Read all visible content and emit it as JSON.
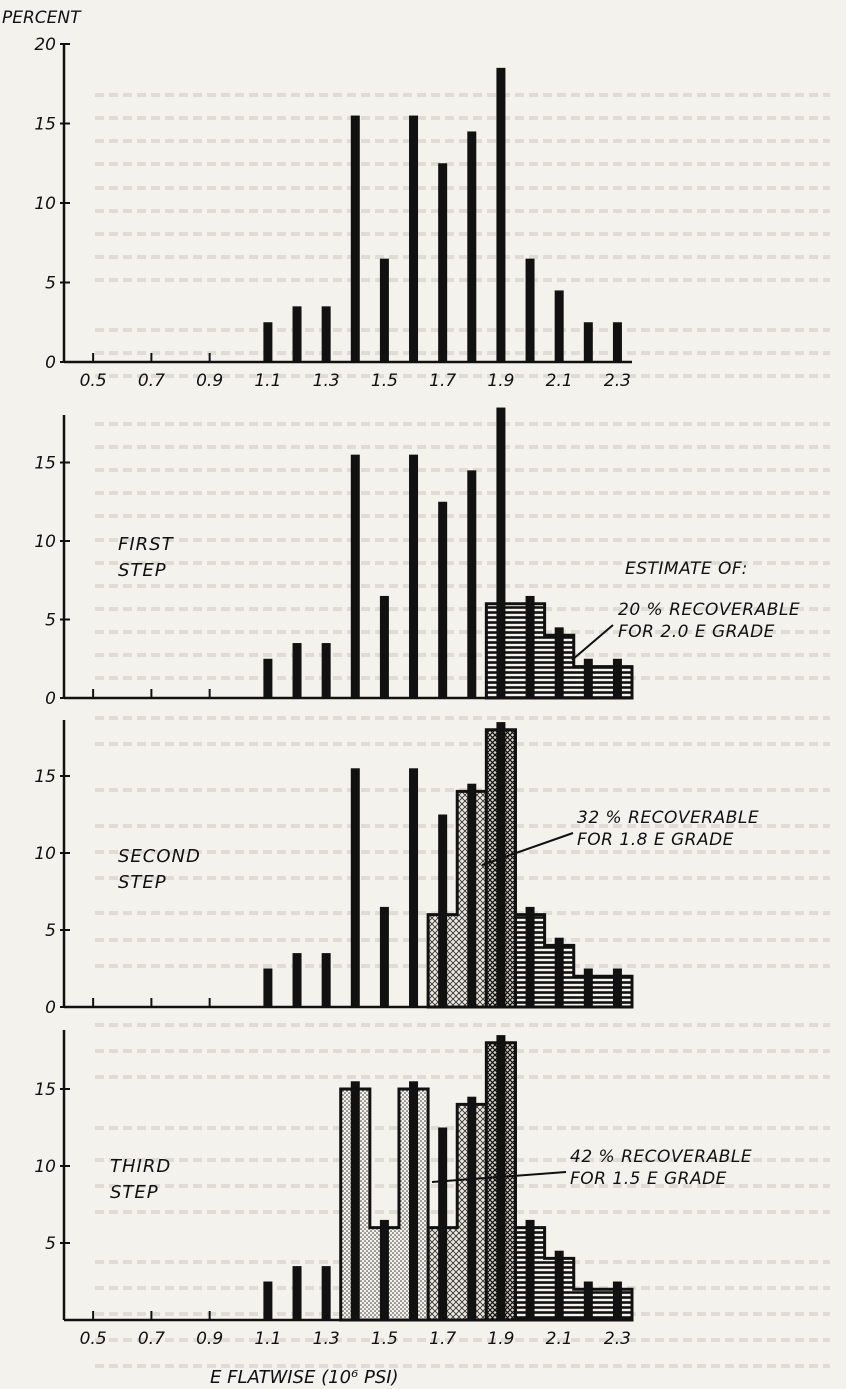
{
  "chart_data": {
    "type": "bar",
    "y_axis_title": "PERCENT",
    "x_axis_title": "E FLATWISE (10⁶ PSI)",
    "x_ticks": [
      "0.5",
      "0.7",
      "0.9",
      "1.1",
      "1.3",
      "1.5",
      "1.7",
      "1.9",
      "2.1",
      "2.3"
    ],
    "x_range": [
      0.4,
      2.35
    ],
    "y_range": [
      0,
      20
    ],
    "y_ticks": [
      0,
      5,
      10,
      15,
      20
    ],
    "series": {
      "x": [
        1.1,
        1.2,
        1.3,
        1.4,
        1.5,
        1.6,
        1.7,
        1.8,
        1.9,
        2.0,
        2.1,
        2.2,
        2.3
      ],
      "percent": [
        2.5,
        3.5,
        3.5,
        15.5,
        6.5,
        15.5,
        12.5,
        14.5,
        18.5,
        6.5,
        4.5,
        2.5,
        2.5
      ]
    },
    "panels": [
      {
        "id": "original",
        "step_label": [],
        "y_ticks": [
          0,
          5,
          10,
          15,
          20
        ],
        "show_x_ticks": true,
        "regions": []
      },
      {
        "id": "first",
        "step_label": [
          "FIRST",
          "STEP"
        ],
        "y_ticks": [
          0,
          5,
          10,
          15
        ],
        "show_x_ticks": false,
        "header_annotation": "ESTIMATE OF:",
        "regions": [
          {
            "pattern": "hatch",
            "from": 1.85,
            "to": 2.35,
            "heights": [
              6,
              6,
              4,
              2,
              2
            ]
          }
        ],
        "annotation": [
          "20 % RECOVERABLE",
          "FOR 2.0 E GRADE"
        ]
      },
      {
        "id": "second",
        "step_label": [
          "SECOND",
          "STEP"
        ],
        "y_ticks": [
          0,
          5,
          10,
          15
        ],
        "show_x_ticks": false,
        "regions": [
          {
            "pattern": "hatch",
            "from": 1.85,
            "to": 2.35,
            "heights": [
              6,
              6,
              4,
              2,
              2
            ]
          },
          {
            "pattern": "cross",
            "from": 1.65,
            "to": 1.85,
            "heights": [
              6,
              14
            ]
          },
          {
            "pattern": "cross_tall",
            "from": 1.85,
            "to": 1.95,
            "heights": [
              18
            ]
          }
        ],
        "annotation": [
          "32 % RECOVERABLE",
          "FOR 1.8 E GRADE"
        ]
      },
      {
        "id": "third",
        "step_label": [
          "THIRD",
          "STEP"
        ],
        "y_ticks": [
          5,
          10,
          15
        ],
        "show_x_ticks": true,
        "regions": [
          {
            "pattern": "hatch",
            "from": 1.85,
            "to": 2.35,
            "heights": [
              6,
              6,
              4,
              2,
              2
            ]
          },
          {
            "pattern": "cross",
            "from": 1.65,
            "to": 1.85,
            "heights": [
              6,
              14
            ]
          },
          {
            "pattern": "cross_tall",
            "from": 1.85,
            "to": 1.95,
            "heights": [
              18
            ]
          },
          {
            "pattern": "dots",
            "from": 1.35,
            "to": 1.65,
            "heights": [
              15,
              6,
              15
            ]
          }
        ],
        "annotation": [
          "42 % RECOVERABLE",
          "FOR 1.5 E GRADE"
        ]
      }
    ]
  }
}
